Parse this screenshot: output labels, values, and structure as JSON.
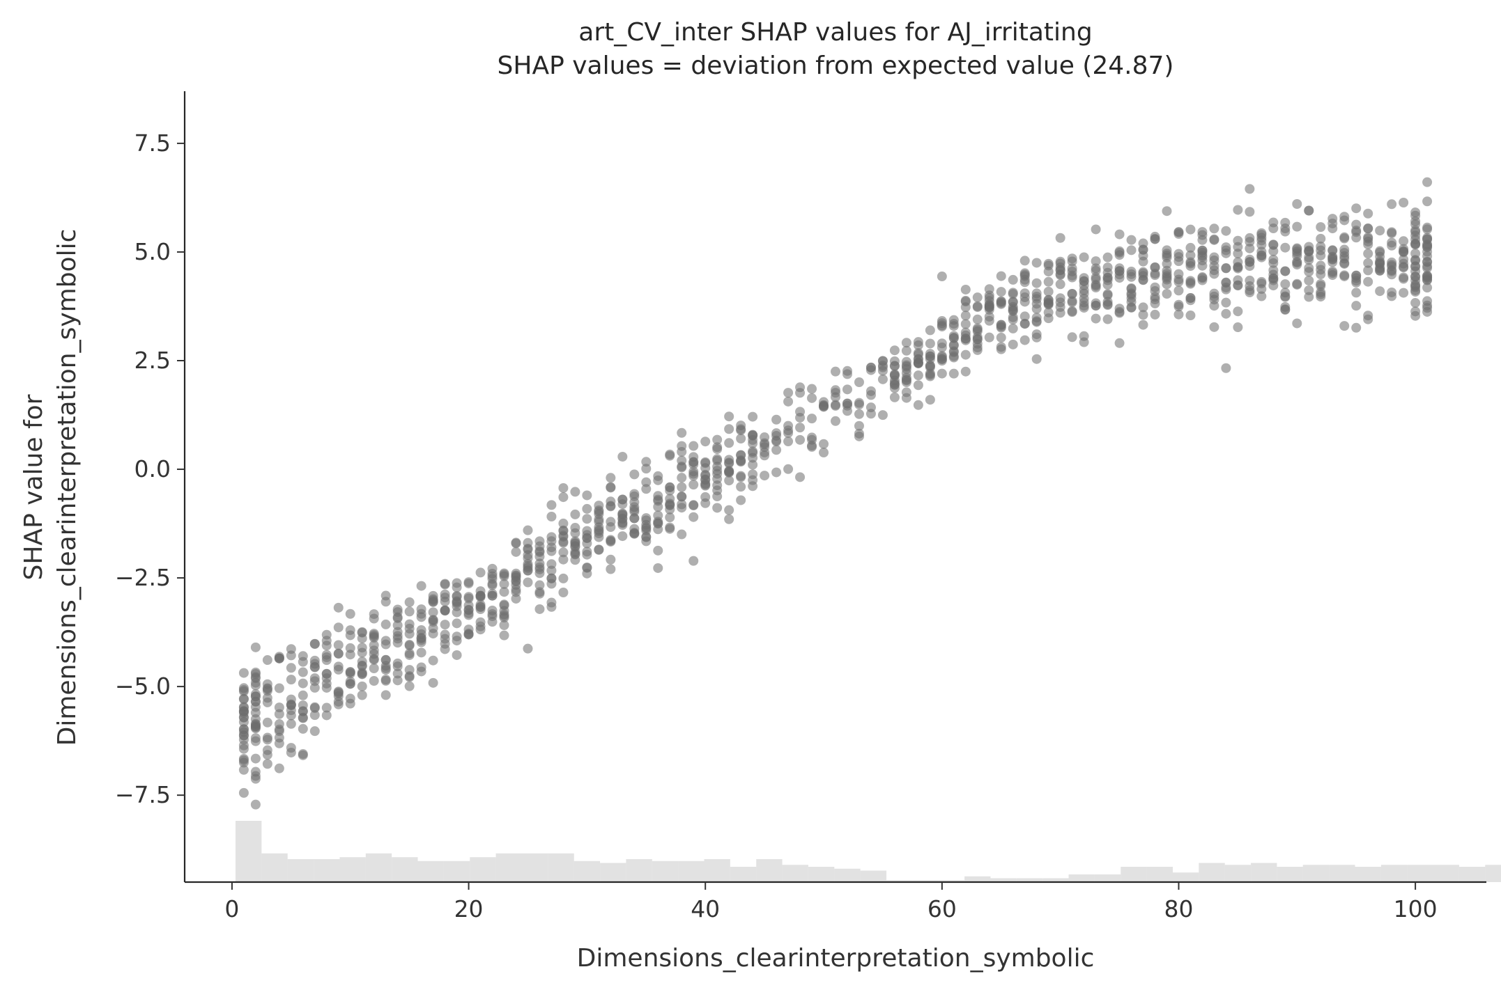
{
  "chart_data": {
    "type": "scatter",
    "title_lines": [
      "art_CV_inter SHAP values for AJ_irritating",
      "SHAP values = deviation from expected value (24.87)"
    ],
    "xlabel": "Dimensions_clearinterpretation_symbolic",
    "ylabel_lines": [
      "SHAP value for",
      "Dimensions_clearinterpretation_symbolic"
    ],
    "xlim": [
      -4,
      106
    ],
    "ylim": [
      -9.5,
      8.7
    ],
    "xticks": [
      0,
      20,
      40,
      60,
      80,
      100
    ],
    "xtick_labels": [
      "0",
      "20",
      "40",
      "60",
      "80",
      "100"
    ],
    "yticks": [
      -7.5,
      -5.0,
      -2.5,
      0.0,
      2.5,
      5.0,
      7.5
    ],
    "ytick_labels": [
      "−7.5",
      "−5.0",
      "−2.5",
      "0.0",
      "2.5",
      "5.0",
      "7.5"
    ],
    "point_color": "#6e6e6e",
    "histogram_color": "#d6d6d6",
    "grid": false,
    "trend_profile": [
      [
        1,
        -5.8
      ],
      [
        5,
        -5.3
      ],
      [
        10,
        -4.6
      ],
      [
        15,
        -3.9
      ],
      [
        20,
        -3.2
      ],
      [
        25,
        -2.3
      ],
      [
        30,
        -1.5
      ],
      [
        35,
        -0.9
      ],
      [
        40,
        -0.1
      ],
      [
        45,
        0.5
      ],
      [
        50,
        1.2
      ],
      [
        55,
        2.0
      ],
      [
        60,
        2.8
      ],
      [
        65,
        3.5
      ],
      [
        70,
        4.1
      ],
      [
        75,
        4.4
      ],
      [
        80,
        4.7
      ],
      [
        85,
        4.6
      ],
      [
        90,
        4.7
      ],
      [
        95,
        4.7
      ],
      [
        101,
        4.9
      ]
    ],
    "spread_profile": [
      [
        1,
        0.8
      ],
      [
        10,
        0.6
      ],
      [
        20,
        0.55
      ],
      [
        30,
        0.5
      ],
      [
        40,
        0.55
      ],
      [
        45,
        0.4
      ],
      [
        50,
        0.45
      ],
      [
        60,
        0.5
      ],
      [
        70,
        0.5
      ],
      [
        80,
        0.55
      ],
      [
        90,
        0.6
      ],
      [
        101,
        0.8
      ]
    ],
    "histogram": {
      "bin_edges_start": 0.3,
      "bin_width": 2.2,
      "heights": [
        0.32,
        0.15,
        0.12,
        0.12,
        0.13,
        0.15,
        0.13,
        0.11,
        0.11,
        0.13,
        0.15,
        0.15,
        0.15,
        0.11,
        0.1,
        0.12,
        0.11,
        0.11,
        0.12,
        0.08,
        0.12,
        0.09,
        0.08,
        0.07,
        0.06,
        0.01,
        0.01,
        0.01,
        0.03,
        0.02,
        0.02,
        0.02,
        0.04,
        0.04,
        0.08,
        0.08,
        0.05,
        0.1,
        0.09,
        0.1,
        0.08,
        0.09,
        0.09,
        0.08,
        0.09,
        0.09,
        0.09,
        0.08,
        0.09,
        0.1,
        0.09,
        0.08,
        0.06,
        0.04,
        0.16,
        0.16
      ]
    }
  }
}
